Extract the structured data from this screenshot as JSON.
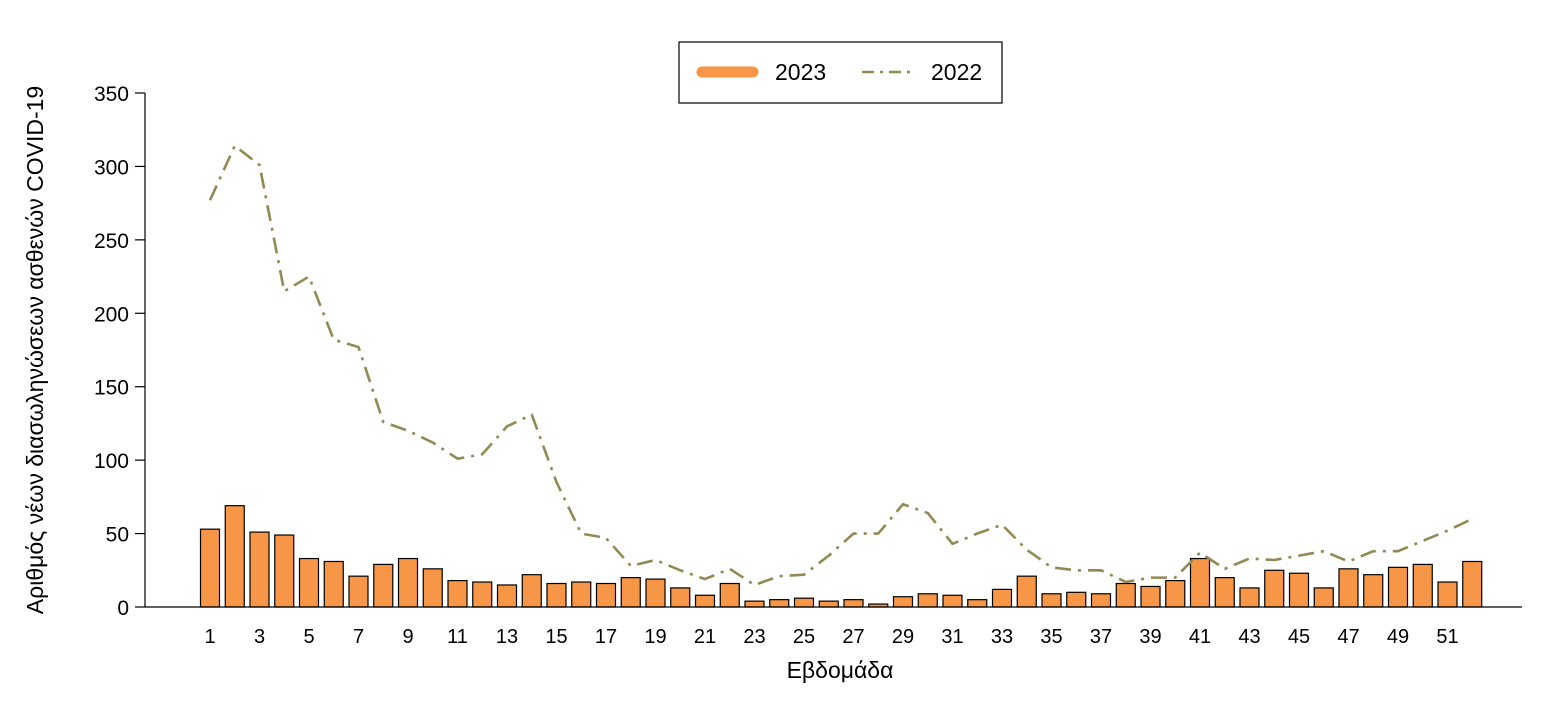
{
  "chart_data": {
    "type": "bar",
    "xlabel": "Εβδομάδα",
    "ylabel": "Αριθμός νέων διασωληνώσεων ασθενών COVID-19",
    "ylim": [
      0,
      350
    ],
    "yticks": [
      0,
      50,
      100,
      150,
      200,
      250,
      300,
      350
    ],
    "x": [
      1,
      2,
      3,
      4,
      5,
      6,
      7,
      8,
      9,
      10,
      11,
      12,
      13,
      14,
      15,
      16,
      17,
      18,
      19,
      20,
      21,
      22,
      23,
      24,
      25,
      26,
      27,
      28,
      29,
      30,
      31,
      32,
      33,
      34,
      35,
      36,
      37,
      38,
      39,
      40,
      41,
      42,
      43,
      44,
      45,
      46,
      47,
      48,
      49,
      50,
      51,
      52
    ],
    "xtick_labels": [
      "1",
      "3",
      "5",
      "7",
      "9",
      "11",
      "13",
      "15",
      "17",
      "19",
      "21",
      "23",
      "25",
      "27",
      "29",
      "31",
      "33",
      "35",
      "37",
      "39",
      "41",
      "43",
      "45",
      "47",
      "49",
      "51"
    ],
    "legend_position": "top-center",
    "grid": false,
    "series": [
      {
        "name": "2023",
        "type": "bar",
        "color": "#F79646",
        "values": [
          53,
          69,
          51,
          49,
          33,
          31,
          21,
          29,
          33,
          26,
          18,
          17,
          15,
          22,
          16,
          17,
          16,
          20,
          19,
          13,
          8,
          16,
          4,
          5,
          6,
          4,
          5,
          2,
          7,
          9,
          8,
          5,
          12,
          21,
          9,
          10,
          9,
          16,
          14,
          18,
          33,
          20,
          13,
          25,
          23,
          13,
          26,
          22,
          27,
          29,
          17,
          31
        ]
      },
      {
        "name": "2022",
        "type": "line",
        "style": "dashdot",
        "color": "#938953",
        "values": [
          277,
          314,
          301,
          215,
          225,
          182,
          177,
          126,
          120,
          112,
          101,
          104,
          123,
          131,
          85,
          50,
          47,
          28,
          32,
          25,
          19,
          26,
          15,
          21,
          22,
          35,
          50,
          50,
          70,
          64,
          43,
          50,
          56,
          39,
          27,
          25,
          25,
          17,
          20,
          20,
          37,
          26,
          33,
          32,
          35,
          38,
          31,
          38,
          38,
          45,
          52,
          60
        ]
      }
    ]
  }
}
